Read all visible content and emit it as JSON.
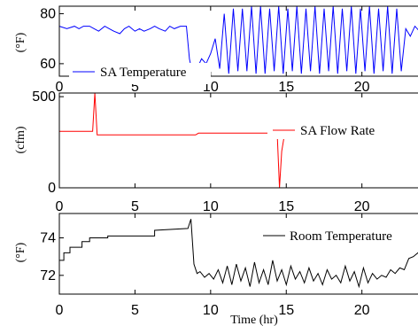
{
  "chart_data": [
    {
      "type": "line",
      "ylabel": "(°F)",
      "ylim": [
        55,
        83
      ],
      "xlim": [
        0,
        24
      ],
      "xticks": [
        0,
        5,
        10,
        15,
        20
      ],
      "yticks": [
        60,
        80
      ],
      "series": [
        {
          "name": "SA Temperature",
          "color": "#0000ff",
          "x": [
            0,
            0.5,
            1,
            1.3,
            1.6,
            2,
            2.3,
            2.6,
            3,
            3.3,
            3.6,
            4,
            4.3,
            4.6,
            5,
            5.3,
            5.6,
            6,
            6.3,
            6.6,
            7,
            7.3,
            7.6,
            8,
            8.4,
            8.6,
            8.8,
            9.1,
            9.4,
            9.7,
            10,
            10.3,
            10.6,
            10.9,
            11.2,
            11.5,
            11.8,
            12.1,
            12.4,
            12.7,
            13,
            13.3,
            13.6,
            13.9,
            14.2,
            14.5,
            14.8,
            15.1,
            15.4,
            15.7,
            16,
            16.3,
            16.6,
            16.9,
            17.2,
            17.5,
            17.8,
            18.1,
            18.4,
            18.7,
            19,
            19.3,
            19.6,
            19.9,
            20.2,
            20.5,
            20.8,
            21.1,
            21.4,
            21.7,
            22,
            22.3,
            22.6,
            22.9,
            23.2,
            23.5,
            23.8,
            24
          ],
          "y": [
            75,
            74,
            75,
            74,
            75,
            75,
            74,
            73,
            75,
            74,
            73,
            72,
            74,
            75,
            73,
            74,
            73,
            74,
            75,
            74,
            73,
            75,
            74,
            75,
            75,
            62,
            56,
            58,
            62,
            60,
            64,
            70,
            58,
            80,
            56,
            82,
            57,
            82,
            57,
            83,
            56,
            83,
            56,
            82,
            57,
            83,
            56,
            82,
            57,
            83,
            56,
            82,
            57,
            83,
            56,
            82,
            57,
            83,
            56,
            82,
            57,
            83,
            56,
            82,
            57,
            83,
            56,
            82,
            57,
            83,
            56,
            82,
            57,
            74,
            71,
            75,
            73,
            74
          ]
        }
      ]
    },
    {
      "type": "line",
      "ylabel": "(cfm)",
      "ylim": [
        0,
        520
      ],
      "xlim": [
        0,
        24
      ],
      "xticks": [
        0,
        5,
        10,
        15,
        20
      ],
      "yticks": [
        0,
        500
      ],
      "series": [
        {
          "name": "SA Flow Rate",
          "color": "#ff0000",
          "x": [
            0,
            2.2,
            2.35,
            2.5,
            2.7,
            9.0,
            9.2,
            14.4,
            14.55,
            14.7,
            14.9,
            24
          ],
          "y": [
            310,
            310,
            530,
            290,
            290,
            290,
            300,
            300,
            0,
            200,
            300,
            300
          ]
        }
      ]
    },
    {
      "type": "line",
      "ylabel": "(°F)",
      "ylim": [
        71.0,
        75.3
      ],
      "xlim": [
        0,
        24
      ],
      "xticks": [
        0,
        5,
        10,
        15,
        20
      ],
      "yticks": [
        72,
        74
      ],
      "series": [
        {
          "name": "Room Temperature",
          "color": "#000000",
          "x": [
            0,
            0.3,
            0.3,
            0.7,
            0.7,
            1.5,
            1.5,
            2.0,
            2.0,
            3.2,
            3.2,
            6.3,
            6.3,
            8.5,
            8.7,
            8.9,
            9.1,
            9.3,
            9.6,
            9.9,
            10.2,
            10.5,
            10.8,
            11.1,
            11.4,
            11.7,
            12.0,
            12.3,
            12.6,
            12.9,
            13.2,
            13.5,
            13.8,
            14.1,
            14.4,
            14.7,
            15.0,
            15.3,
            15.6,
            15.9,
            16.2,
            16.5,
            16.8,
            17.1,
            17.4,
            17.7,
            18.0,
            18.3,
            18.6,
            18.9,
            19.2,
            19.5,
            19.8,
            20.1,
            20.4,
            20.7,
            21.0,
            21.3,
            21.6,
            21.9,
            22.2,
            22.5,
            22.8,
            23.1,
            23.4,
            23.7,
            24
          ],
          "y": [
            72.8,
            72.8,
            73.2,
            73.2,
            73.5,
            73.5,
            73.8,
            73.8,
            74.0,
            74.0,
            74.1,
            74.1,
            74.4,
            74.5,
            75.0,
            72.6,
            72.1,
            72.2,
            71.9,
            72.1,
            71.8,
            72.3,
            71.6,
            72.5,
            71.5,
            72.6,
            71.7,
            72.4,
            71.4,
            72.7,
            71.6,
            72.3,
            71.5,
            72.8,
            71.7,
            72.3,
            71.5,
            72.5,
            71.8,
            72.2,
            71.6,
            72.4,
            71.7,
            72.1,
            71.5,
            72.3,
            71.8,
            72.0,
            71.6,
            72.5,
            71.7,
            72.2,
            71.4,
            72.4,
            71.6,
            72.1,
            71.8,
            72.0,
            71.9,
            72.3,
            72.1,
            72.4,
            72.3,
            72.9,
            73.0,
            73.2,
            73.2
          ]
        }
      ]
    }
  ],
  "xaxis": {
    "label": "Time (hr)"
  }
}
